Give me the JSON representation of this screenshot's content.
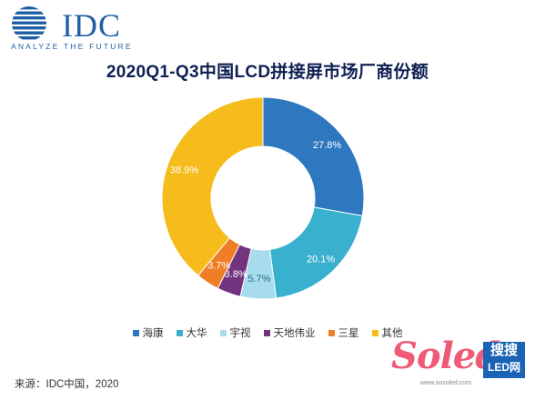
{
  "logo": {
    "name": "IDC",
    "tagline": "ANALYZE THE FUTURE",
    "color": "#1f5fa6"
  },
  "chart_data": {
    "type": "pie",
    "variant": "donut",
    "title": "2020Q1-Q3中国LCD拼接屏市场厂商份额",
    "slices": [
      {
        "name": "海康",
        "value": 27.8,
        "label": "27.8%",
        "color": "#2d78bf"
      },
      {
        "name": "大华",
        "value": 20.1,
        "label": "20.1%",
        "color": "#3ab0cf"
      },
      {
        "name": "宇视",
        "value": 5.7,
        "label": "5.7%",
        "color": "#a6dceb"
      },
      {
        "name": "天地伟业",
        "value": 3.8,
        "label": "3.8%",
        "color": "#74337f"
      },
      {
        "name": "三星",
        "value": 3.7,
        "label": "3.7%",
        "color": "#f07e26"
      },
      {
        "name": "其他",
        "value": 38.9,
        "label": "38.9%",
        "color": "#f6bc1c"
      }
    ],
    "legend_position": "bottom"
  },
  "source": "来源：IDC中国，2020",
  "watermark": {
    "word": "Soled",
    "box_top": "搜搜",
    "box_bottom": "LED网",
    "url": "www.sosoled.com"
  }
}
